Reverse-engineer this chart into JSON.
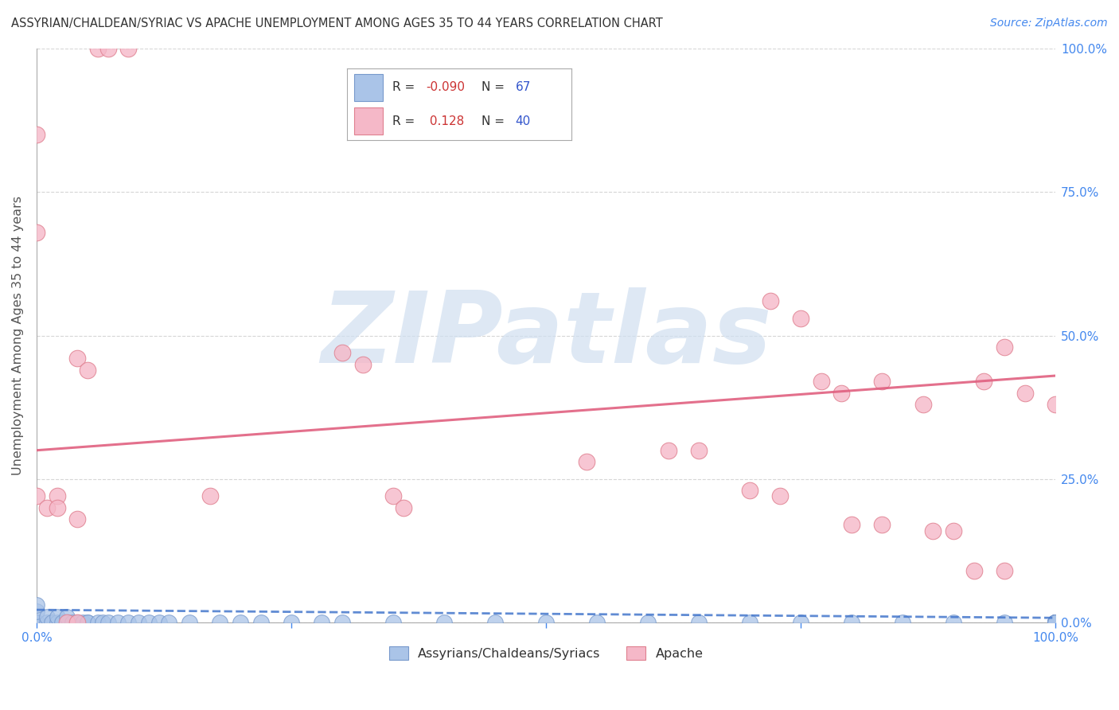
{
  "title": "ASSYRIAN/CHALDEAN/SYRIAC VS APACHE UNEMPLOYMENT AMONG AGES 35 TO 44 YEARS CORRELATION CHART",
  "source": "Source: ZipAtlas.com",
  "ylabel": "Unemployment Among Ages 35 to 44 years",
  "xlim": [
    0,
    1.0
  ],
  "ylim": [
    0,
    1.0
  ],
  "ytick_positions": [
    0.0,
    0.25,
    0.5,
    0.75,
    1.0
  ],
  "ytick_labels": [
    "0.0%",
    "25.0%",
    "50.0%",
    "75.0%",
    "100.0%"
  ],
  "background_color": "#ffffff",
  "watermark_text": "ZIPatlas",
  "watermark_color": "#d0dff0",
  "legend_R_blue": "-0.090",
  "legend_N_blue": "67",
  "legend_R_pink": "0.128",
  "legend_N_pink": "40",
  "blue_color": "#aac4e8",
  "pink_color": "#f5b8c8",
  "blue_edge_color": "#7799cc",
  "pink_edge_color": "#e08090",
  "blue_line_color": "#4477cc",
  "pink_line_color": "#e06080",
  "axis_label_color": "#4488ee",
  "title_color": "#333333",
  "grid_color": "#cccccc",
  "legend_text_color": "#333333",
  "legend_R_color": "#cc3333",
  "legend_N_color": "#3355cc",
  "blue_scatter_x": [
    0.0,
    0.0,
    0.0,
    0.0,
    0.0,
    0.0,
    0.0,
    0.0,
    0.01,
    0.01,
    0.015,
    0.02,
    0.02,
    0.025,
    0.03,
    0.03,
    0.035,
    0.04,
    0.045,
    0.05,
    0.05,
    0.06,
    0.065,
    0.07,
    0.08,
    0.09,
    0.1,
    0.11,
    0.12,
    0.13,
    0.15,
    0.18,
    0.2,
    0.22,
    0.25,
    0.28,
    0.3,
    0.35,
    0.4,
    0.45,
    0.5,
    0.55,
    0.6,
    0.65,
    0.7,
    0.75,
    0.8,
    0.85,
    0.9,
    0.95,
    1.0,
    1.0,
    1.0,
    1.0,
    1.0,
    1.0,
    1.0,
    1.0,
    1.0,
    1.0,
    1.0,
    1.0,
    1.0,
    1.0,
    1.0,
    1.0,
    1.0
  ],
  "blue_scatter_y": [
    0.0,
    0.0,
    0.0,
    0.0,
    0.0,
    0.0,
    0.02,
    0.03,
    0.0,
    0.01,
    0.0,
    0.0,
    0.01,
    0.0,
    0.0,
    0.01,
    0.0,
    0.0,
    0.0,
    0.0,
    0.0,
    0.0,
    0.0,
    0.0,
    0.0,
    0.0,
    0.0,
    0.0,
    0.0,
    0.0,
    0.0,
    0.0,
    0.0,
    0.0,
    0.0,
    0.0,
    0.0,
    0.0,
    0.0,
    0.0,
    0.0,
    0.0,
    0.0,
    0.0,
    0.0,
    0.0,
    0.0,
    0.0,
    0.0,
    0.0,
    0.0,
    0.0,
    0.0,
    0.0,
    0.0,
    0.0,
    0.0,
    0.0,
    0.0,
    0.0,
    0.0,
    0.0,
    0.0,
    0.0,
    0.0,
    0.0,
    0.0
  ],
  "pink_scatter_x": [
    0.04,
    0.05,
    0.06,
    0.07,
    0.09,
    0.3,
    0.32,
    0.54,
    0.72,
    0.75,
    0.77,
    0.79,
    0.83,
    0.87,
    0.93,
    0.95,
    0.97,
    1.0,
    0.0,
    0.01,
    0.02,
    0.03,
    0.04,
    0.62,
    0.65,
    0.7,
    0.73,
    0.8,
    0.83,
    0.88,
    0.9,
    0.92,
    0.95,
    0.0,
    0.0,
    0.02,
    0.04,
    0.17,
    0.35,
    0.36
  ],
  "pink_scatter_y": [
    0.46,
    0.44,
    1.0,
    1.0,
    1.0,
    0.47,
    0.45,
    0.28,
    0.56,
    0.53,
    0.42,
    0.4,
    0.42,
    0.38,
    0.42,
    0.48,
    0.4,
    0.38,
    0.22,
    0.2,
    0.22,
    0.0,
    0.0,
    0.3,
    0.3,
    0.23,
    0.22,
    0.17,
    0.17,
    0.16,
    0.16,
    0.09,
    0.09,
    0.85,
    0.68,
    0.2,
    0.18,
    0.22,
    0.22,
    0.2
  ],
  "blue_trend_x": [
    0.0,
    1.0
  ],
  "blue_trend_y": [
    0.022,
    0.008
  ],
  "pink_trend_x": [
    0.0,
    1.0
  ],
  "pink_trend_y": [
    0.3,
    0.43
  ]
}
